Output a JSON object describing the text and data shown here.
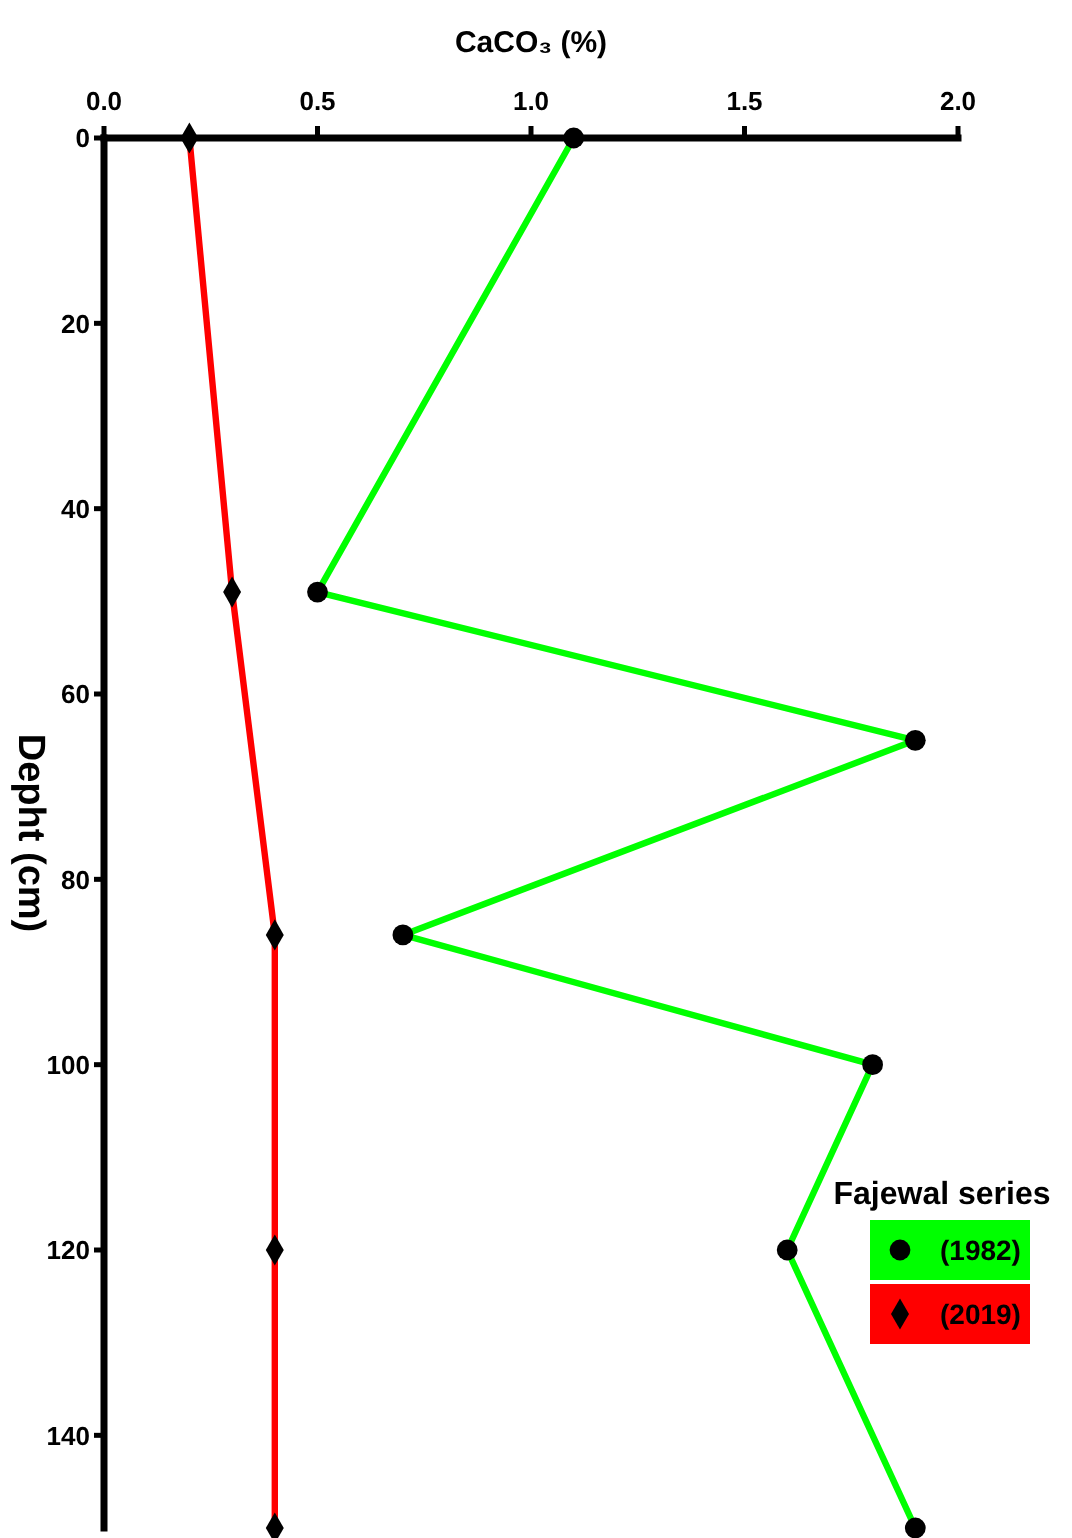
{
  "chart_data": {
    "type": "line",
    "xlabel": "CaCO₃ (%)",
    "ylabel": "Depht (cm)",
    "legend_title": "Fajewal series",
    "xlim": [
      0,
      2
    ],
    "xticks": [
      {
        "value": 0,
        "label": "0.0"
      },
      {
        "value": 0.5,
        "label": "0.5"
      },
      {
        "value": 1,
        "label": "1.0"
      },
      {
        "value": 1.5,
        "label": "1.5"
      },
      {
        "value": 2,
        "label": "2.0"
      }
    ],
    "ylim": [
      150,
      0
    ],
    "yticks": [
      0,
      20,
      40,
      60,
      80,
      100,
      120,
      140
    ],
    "series": [
      {
        "name": "(1982)",
        "color": "#00ff00",
        "marker": "circle",
        "x": [
          1.1,
          0.5,
          1.9,
          0.7,
          1.8,
          1.6,
          1.9
        ],
        "values": [
          0,
          49,
          65,
          86,
          100,
          120,
          150
        ]
      },
      {
        "name": "(2019)",
        "color": "#ff0000",
        "marker": "diamond",
        "x": [
          0.2,
          0.3,
          0.4,
          0.4,
          0.4
        ],
        "values": [
          0,
          49,
          86,
          120,
          150
        ]
      }
    ],
    "legend": "bottom right"
  }
}
